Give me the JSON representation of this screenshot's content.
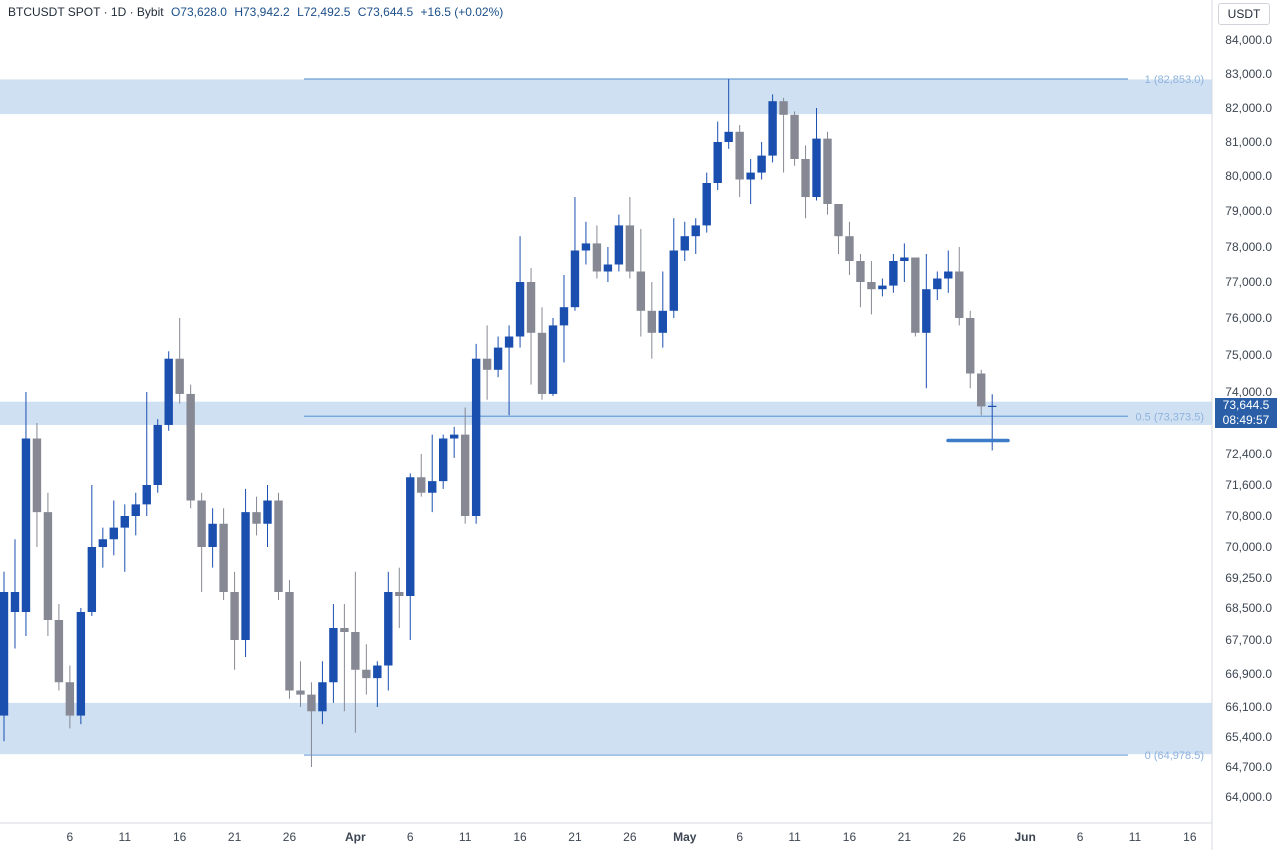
{
  "header": {
    "symbol": "BTCUSDT SPOT · 1D · Bybit",
    "open": "O73,628.0",
    "high": "H73,942.2",
    "low": "L72,492.5",
    "close": "C73,644.5",
    "change": "+16.5 (+0.02%)"
  },
  "currency_button": "USDT",
  "last_price": {
    "price": "73,644.5",
    "countdown": "08:49:57"
  },
  "colors": {
    "up": "#1a4faf",
    "down": "#868994",
    "zone": "#cfe0f3",
    "line": "#6b9fd8",
    "axis_text": "#3c4652",
    "level_text": "#8fb3dd",
    "tag": "#2a5fa8"
  },
  "chart_data": {
    "type": "candlestick",
    "y_axis": {
      "ticks": [
        "84,000.0",
        "83,000.0",
        "82,000.0",
        "81,000.0",
        "80,000.0",
        "79,000.0",
        "78,000.0",
        "77,000.0",
        "76,000.0",
        "75,000.0",
        "74,000.0",
        "72,400.0",
        "71,600.0",
        "70,800.0",
        "70,000.0",
        "69,250.0",
        "68,500.0",
        "67,700.0",
        "66,900.0",
        "66,100.0",
        "65,400.0",
        "64,700.0",
        "64,000.0"
      ],
      "tick_values": [
        84000,
        83000,
        82000,
        81000,
        80000,
        79000,
        78000,
        77000,
        76000,
        75000,
        74000,
        72400,
        71600,
        70800,
        70000,
        69250,
        68500,
        67700,
        66900,
        66100,
        65400,
        64700,
        64000
      ]
    },
    "x_axis": {
      "labels": [
        "6",
        "11",
        "16",
        "21",
        "26",
        "Apr",
        "6",
        "11",
        "16",
        "21",
        "26",
        "May",
        "6",
        "11",
        "16",
        "21",
        "26",
        "Jun",
        "6",
        "11",
        "16"
      ],
      "label_days": [
        6,
        11,
        16,
        21,
        26,
        32,
        37,
        42,
        47,
        52,
        57,
        62,
        67,
        72,
        77,
        82,
        87,
        93,
        98,
        103,
        108
      ],
      "bold": [
        "Apr",
        "May",
        "Jun"
      ]
    },
    "fib_levels": [
      {
        "label": "1 (82,853.0)",
        "value": 82853.0
      },
      {
        "label": "0.5 (73,373.5)",
        "value": 73373.5
      },
      {
        "label": "0 (64,978.5)",
        "value": 64978.5
      }
    ],
    "zones": [
      {
        "from": 81820,
        "to": 82840
      },
      {
        "from": 73150,
        "to": 73750
      },
      {
        "from": 65000,
        "to": 66200
      }
    ],
    "candles": [
      {
        "d": 0,
        "o": 65900,
        "h": 69400,
        "l": 65300,
        "c": 68900
      },
      {
        "d": 1,
        "o": 68400,
        "h": 70200,
        "l": 67500,
        "c": 68900
      },
      {
        "d": 2,
        "o": 68400,
        "h": 74000,
        "l": 67800,
        "c": 72800
      },
      {
        "d": 3,
        "o": 72800,
        "h": 73200,
        "l": 70000,
        "c": 70900
      },
      {
        "d": 4,
        "o": 70900,
        "h": 71400,
        "l": 67800,
        "c": 68200
      },
      {
        "d": 5,
        "o": 68200,
        "h": 68600,
        "l": 66500,
        "c": 66700
      },
      {
        "d": 6,
        "o": 66700,
        "h": 67100,
        "l": 65600,
        "c": 65900
      },
      {
        "d": 7,
        "o": 65900,
        "h": 68500,
        "l": 65700,
        "c": 68400
      },
      {
        "d": 8,
        "o": 68400,
        "h": 71600,
        "l": 68300,
        "c": 70000
      },
      {
        "d": 9,
        "o": 70000,
        "h": 70500,
        "l": 69500,
        "c": 70200
      },
      {
        "d": 10,
        "o": 70200,
        "h": 71200,
        "l": 69800,
        "c": 70500
      },
      {
        "d": 11,
        "o": 70500,
        "h": 71100,
        "l": 69400,
        "c": 70800
      },
      {
        "d": 12,
        "o": 70800,
        "h": 71400,
        "l": 70300,
        "c": 71100
      },
      {
        "d": 13,
        "o": 71100,
        "h": 74000,
        "l": 70800,
        "c": 71600
      },
      {
        "d": 14,
        "o": 71600,
        "h": 73300,
        "l": 71400,
        "c": 73150
      },
      {
        "d": 15,
        "o": 73150,
        "h": 75100,
        "l": 73000,
        "c": 74900
      },
      {
        "d": 16,
        "o": 74900,
        "h": 76000,
        "l": 73700,
        "c": 73950
      },
      {
        "d": 17,
        "o": 73950,
        "h": 74200,
        "l": 71000,
        "c": 71200
      },
      {
        "d": 18,
        "o": 71200,
        "h": 71400,
        "l": 68900,
        "c": 70000
      },
      {
        "d": 19,
        "o": 70000,
        "h": 71000,
        "l": 69500,
        "c": 70600
      },
      {
        "d": 20,
        "o": 70600,
        "h": 71000,
        "l": 68700,
        "c": 68900
      },
      {
        "d": 21,
        "o": 68900,
        "h": 69400,
        "l": 67000,
        "c": 67700
      },
      {
        "d": 22,
        "o": 67700,
        "h": 71500,
        "l": 67300,
        "c": 70900
      },
      {
        "d": 23,
        "o": 70900,
        "h": 71300,
        "l": 70300,
        "c": 70600
      },
      {
        "d": 24,
        "o": 70600,
        "h": 71600,
        "l": 70000,
        "c": 71200
      },
      {
        "d": 25,
        "o": 71200,
        "h": 71400,
        "l": 68700,
        "c": 68900
      },
      {
        "d": 26,
        "o": 68900,
        "h": 69200,
        "l": 66300,
        "c": 66500
      },
      {
        "d": 27,
        "o": 66500,
        "h": 67200,
        "l": 66100,
        "c": 66400
      },
      {
        "d": 28,
        "o": 66400,
        "h": 66700,
        "l": 64700,
        "c": 66000
      },
      {
        "d": 29,
        "o": 66000,
        "h": 67200,
        "l": 65700,
        "c": 66700
      },
      {
        "d": 30,
        "o": 66700,
        "h": 68600,
        "l": 66200,
        "c": 68000
      },
      {
        "d": 31,
        "o": 68000,
        "h": 68600,
        "l": 66000,
        "c": 67900
      },
      {
        "d": 32,
        "o": 67900,
        "h": 69400,
        "l": 65500,
        "c": 67000
      },
      {
        "d": 33,
        "o": 67000,
        "h": 67600,
        "l": 66400,
        "c": 66800
      },
      {
        "d": 34,
        "o": 66800,
        "h": 67200,
        "l": 66100,
        "c": 67100
      },
      {
        "d": 35,
        "o": 67100,
        "h": 69400,
        "l": 66500,
        "c": 68900
      },
      {
        "d": 36,
        "o": 68900,
        "h": 69500,
        "l": 68000,
        "c": 68800
      },
      {
        "d": 37,
        "o": 68800,
        "h": 71900,
        "l": 67700,
        "c": 71800
      },
      {
        "d": 38,
        "o": 71800,
        "h": 72400,
        "l": 71300,
        "c": 71400
      },
      {
        "d": 39,
        "o": 71400,
        "h": 72900,
        "l": 70900,
        "c": 71700
      },
      {
        "d": 40,
        "o": 71700,
        "h": 72900,
        "l": 71500,
        "c": 72800
      },
      {
        "d": 41,
        "o": 72800,
        "h": 73100,
        "l": 72300,
        "c": 72900
      },
      {
        "d": 42,
        "o": 72900,
        "h": 73600,
        "l": 70600,
        "c": 70800
      },
      {
        "d": 43,
        "o": 70800,
        "h": 75300,
        "l": 70600,
        "c": 74900
      },
      {
        "d": 44,
        "o": 74900,
        "h": 75800,
        "l": 73800,
        "c": 74600
      },
      {
        "d": 45,
        "o": 74600,
        "h": 75500,
        "l": 74400,
        "c": 75200
      },
      {
        "d": 46,
        "o": 75200,
        "h": 75800,
        "l": 73400,
        "c": 75500
      },
      {
        "d": 47,
        "o": 75500,
        "h": 78300,
        "l": 75200,
        "c": 77000
      },
      {
        "d": 48,
        "o": 77000,
        "h": 77400,
        "l": 74200,
        "c": 75600
      },
      {
        "d": 49,
        "o": 75600,
        "h": 76300,
        "l": 73800,
        "c": 73950
      },
      {
        "d": 50,
        "o": 73950,
        "h": 76000,
        "l": 73900,
        "c": 75800
      },
      {
        "d": 51,
        "o": 75800,
        "h": 77200,
        "l": 74800,
        "c": 76300
      },
      {
        "d": 52,
        "o": 76300,
        "h": 79400,
        "l": 76200,
        "c": 77900
      },
      {
        "d": 53,
        "o": 77900,
        "h": 78700,
        "l": 77500,
        "c": 78100
      },
      {
        "d": 54,
        "o": 78100,
        "h": 78600,
        "l": 77100,
        "c": 77300
      },
      {
        "d": 55,
        "o": 77300,
        "h": 78000,
        "l": 77000,
        "c": 77500
      },
      {
        "d": 56,
        "o": 77500,
        "h": 78900,
        "l": 77300,
        "c": 78600
      },
      {
        "d": 57,
        "o": 78600,
        "h": 79400,
        "l": 77100,
        "c": 77300
      },
      {
        "d": 58,
        "o": 77300,
        "h": 78500,
        "l": 75500,
        "c": 76200
      },
      {
        "d": 59,
        "o": 76200,
        "h": 77000,
        "l": 74900,
        "c": 75600
      },
      {
        "d": 60,
        "o": 75600,
        "h": 77300,
        "l": 75200,
        "c": 76200
      },
      {
        "d": 61,
        "o": 76200,
        "h": 78800,
        "l": 76000,
        "c": 77900
      },
      {
        "d": 62,
        "o": 77900,
        "h": 78700,
        "l": 77600,
        "c": 78300
      },
      {
        "d": 63,
        "o": 78300,
        "h": 78800,
        "l": 77800,
        "c": 78600
      },
      {
        "d": 64,
        "o": 78600,
        "h": 80100,
        "l": 78400,
        "c": 79800
      },
      {
        "d": 65,
        "o": 79800,
        "h": 81600,
        "l": 79600,
        "c": 81000
      },
      {
        "d": 66,
        "o": 81000,
        "h": 82850,
        "l": 80800,
        "c": 81300
      },
      {
        "d": 67,
        "o": 81300,
        "h": 81500,
        "l": 79400,
        "c": 79900
      },
      {
        "d": 68,
        "o": 79900,
        "h": 80500,
        "l": 79200,
        "c": 80100
      },
      {
        "d": 69,
        "o": 80100,
        "h": 81000,
        "l": 79900,
        "c": 80600
      },
      {
        "d": 70,
        "o": 80600,
        "h": 82400,
        "l": 80400,
        "c": 82200
      },
      {
        "d": 71,
        "o": 82200,
        "h": 82300,
        "l": 80100,
        "c": 81800
      },
      {
        "d": 72,
        "o": 81800,
        "h": 81900,
        "l": 80300,
        "c": 80500
      },
      {
        "d": 73,
        "o": 80500,
        "h": 80900,
        "l": 78800,
        "c": 79400
      },
      {
        "d": 74,
        "o": 79400,
        "h": 82000,
        "l": 79300,
        "c": 81100
      },
      {
        "d": 75,
        "o": 81100,
        "h": 81300,
        "l": 78900,
        "c": 79200
      },
      {
        "d": 76,
        "o": 79200,
        "h": 79200,
        "l": 77800,
        "c": 78300
      },
      {
        "d": 77,
        "o": 78300,
        "h": 78700,
        "l": 77200,
        "c": 77600
      },
      {
        "d": 78,
        "o": 77600,
        "h": 77800,
        "l": 76300,
        "c": 77000
      },
      {
        "d": 79,
        "o": 77000,
        "h": 77600,
        "l": 76100,
        "c": 76800
      },
      {
        "d": 80,
        "o": 76800,
        "h": 77100,
        "l": 76600,
        "c": 76900
      },
      {
        "d": 81,
        "o": 76900,
        "h": 77800,
        "l": 76700,
        "c": 77600
      },
      {
        "d": 82,
        "o": 77600,
        "h": 78100,
        "l": 77000,
        "c": 77700
      },
      {
        "d": 83,
        "o": 77700,
        "h": 77700,
        "l": 75500,
        "c": 75600
      },
      {
        "d": 84,
        "o": 75600,
        "h": 77800,
        "l": 74100,
        "c": 76800
      },
      {
        "d": 85,
        "o": 76800,
        "h": 77300,
        "l": 76500,
        "c": 77100
      },
      {
        "d": 86,
        "o": 77100,
        "h": 77900,
        "l": 76700,
        "c": 77300
      },
      {
        "d": 87,
        "o": 77300,
        "h": 78000,
        "l": 75800,
        "c": 76000
      },
      {
        "d": 88,
        "o": 76000,
        "h": 76200,
        "l": 74100,
        "c": 74500
      },
      {
        "d": 89,
        "o": 74500,
        "h": 74600,
        "l": 73400,
        "c": 73628
      },
      {
        "d": 90,
        "o": 73628,
        "h": 73942.2,
        "l": 72492.5,
        "c": 73644.5
      }
    ]
  }
}
